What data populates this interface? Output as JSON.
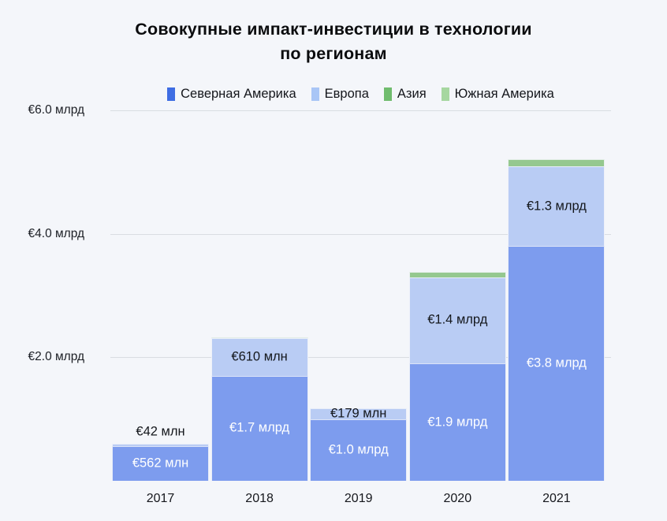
{
  "title_lines": [
    "Совокупные импакт-инвестиции в технологии",
    "по регионам"
  ],
  "colors": {
    "background": "#f4f6fa",
    "grid": "#d9dde2",
    "axis_text": "#1b1e24",
    "bar_label_light": "#ffffff",
    "bar_label_dark": "#14171c"
  },
  "legend": [
    {
      "label": "Северная Америка",
      "swatch": "#3e6de3",
      "slug": "north-america"
    },
    {
      "label": "Европа",
      "swatch": "#a9c6f6",
      "slug": "europe"
    },
    {
      "label": "Азия",
      "swatch": "#70bc6e",
      "slug": "asia"
    },
    {
      "label": "Южная Америка",
      "swatch": "#a6d7a0",
      "slug": "south-america"
    }
  ],
  "chart_data": {
    "type": "bar",
    "stacked": true,
    "title": "Совокупные импакт-инвестиции в технологии по регионам",
    "unit": "млрд €",
    "categories": [
      "2017",
      "2018",
      "2019",
      "2020",
      "2021"
    ],
    "series": [
      {
        "name": "Северная Америка",
        "slug": "north-america",
        "color": "#7d9cee",
        "values": [
          0.562,
          1.7,
          1.0,
          1.9,
          3.8
        ],
        "labels": [
          "€562 млн",
          "€1.7 млрд",
          "€1.0 млрд",
          "€1.9 млрд",
          "€3.8 млрд"
        ],
        "label_color": "#ffffff",
        "label_placement": [
          "inside",
          "inside",
          "inside",
          "inside",
          "inside"
        ]
      },
      {
        "name": "Европа",
        "slug": "europe",
        "color": "#b9ccf4",
        "values": [
          0.042,
          0.61,
          0.179,
          1.4,
          1.3
        ],
        "labels": [
          "€42 млн",
          "€610 млн",
          "€179 млн",
          "€1.4 млрд",
          "€1.3 млрд"
        ],
        "label_color": "#14171c",
        "label_placement": [
          "above",
          "inside",
          "inside",
          "inside",
          "inside"
        ]
      },
      {
        "name": "Азия",
        "slug": "asia",
        "color": "#95c88f",
        "values": [
          0,
          0.02,
          0,
          0.08,
          0.11
        ],
        "labels": [
          null,
          null,
          null,
          null,
          null
        ],
        "label_color": "#14171c",
        "label_placement": [
          "inside",
          "inside",
          "inside",
          "inside",
          "inside"
        ]
      },
      {
        "name": "Южная Америка",
        "slug": "south-america",
        "color": "#a6d7a0",
        "values": [
          0,
          0,
          0,
          0,
          0
        ],
        "labels": [
          null,
          null,
          null,
          null,
          null
        ],
        "label_color": "#14171c",
        "label_placement": [
          "inside",
          "inside",
          "inside",
          "inside",
          "inside"
        ]
      }
    ],
    "y_axis": {
      "ticks": [
        {
          "value": 2,
          "label": "€2.0 млрд"
        },
        {
          "value": 4,
          "label": "€4.0 млрд"
        },
        {
          "value": 6,
          "label": "€6.0 млрд"
        }
      ],
      "min": 0,
      "max": 6.0,
      "grid": true
    },
    "legend_position": "top"
  }
}
